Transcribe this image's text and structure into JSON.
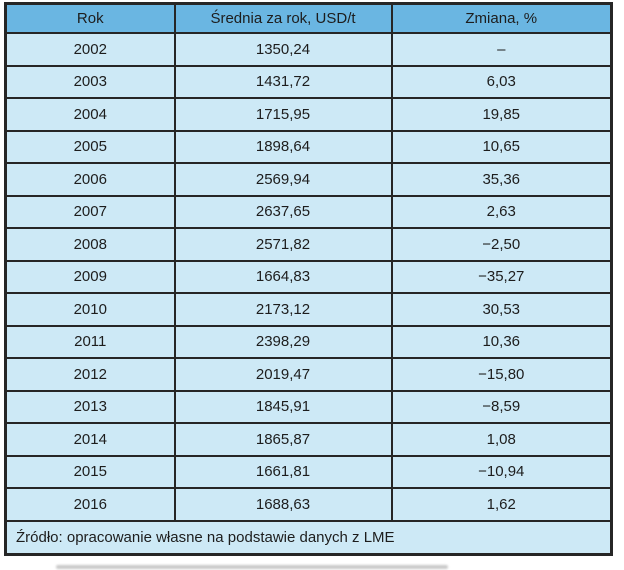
{
  "chart_data": {
    "type": "table",
    "columns": [
      "Rok",
      "Średnia za rok, USD/t",
      "Zmiana, %"
    ],
    "rows": [
      [
        "2002",
        "1350,24",
        "–"
      ],
      [
        "2003",
        "1431,72",
        "6,03"
      ],
      [
        "2004",
        "1715,95",
        "19,85"
      ],
      [
        "2005",
        "1898,64",
        "10,65"
      ],
      [
        "2006",
        "2569,94",
        "35,36"
      ],
      [
        "2007",
        "2637,65",
        "2,63"
      ],
      [
        "2008",
        "2571,82",
        "−2,50"
      ],
      [
        "2009",
        "1664,83",
        "−35,27"
      ],
      [
        "2010",
        "2173,12",
        "30,53"
      ],
      [
        "2011",
        "2398,29",
        "10,36"
      ],
      [
        "2012",
        "2019,47",
        "−15,80"
      ],
      [
        "2013",
        "1845,91",
        "−8,59"
      ],
      [
        "2014",
        "1865,87",
        "1,08"
      ],
      [
        "2015",
        "1661,81",
        "−10,94"
      ],
      [
        "2016",
        "1688,63",
        "1,62"
      ]
    ],
    "source_note": "Źródło: opracowanie własne na podstawie danych z LME",
    "layout": "grid-table, header row highlighted, all cells centered except source note (left-aligned)"
  },
  "colors": {
    "header_bg": "#6ab6e2",
    "row_bg": "#cde9f6",
    "border": "#262626",
    "text": "#1d1d1d",
    "page_bg": "#ffffff"
  }
}
